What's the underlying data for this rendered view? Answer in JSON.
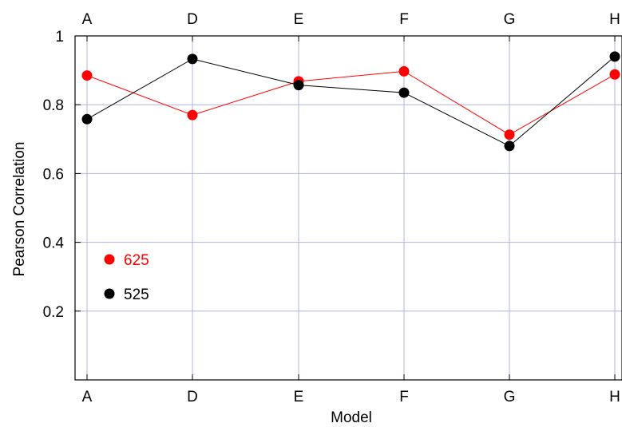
{
  "chart_data": {
    "type": "line",
    "categories": [
      "A",
      "D",
      "E",
      "F",
      "G",
      "H"
    ],
    "xlabel": "Model",
    "ylabel": "Pearson Correlation",
    "ylim": [
      0,
      1
    ],
    "yticks": [
      0.2,
      0.4,
      0.6,
      0.8,
      1
    ],
    "ytick_labels": [
      "0.2",
      "0.4",
      "0.6",
      "0.8",
      "1"
    ],
    "grid": true,
    "legend_position": "lower-left",
    "series": [
      {
        "name": "625",
        "color": "#ff0000",
        "values": [
          0.885,
          0.77,
          0.868,
          0.897,
          0.713,
          0.888
        ]
      },
      {
        "name": "525",
        "color": "#000000",
        "values": [
          0.758,
          0.933,
          0.857,
          0.835,
          0.68,
          0.94
        ]
      }
    ]
  }
}
